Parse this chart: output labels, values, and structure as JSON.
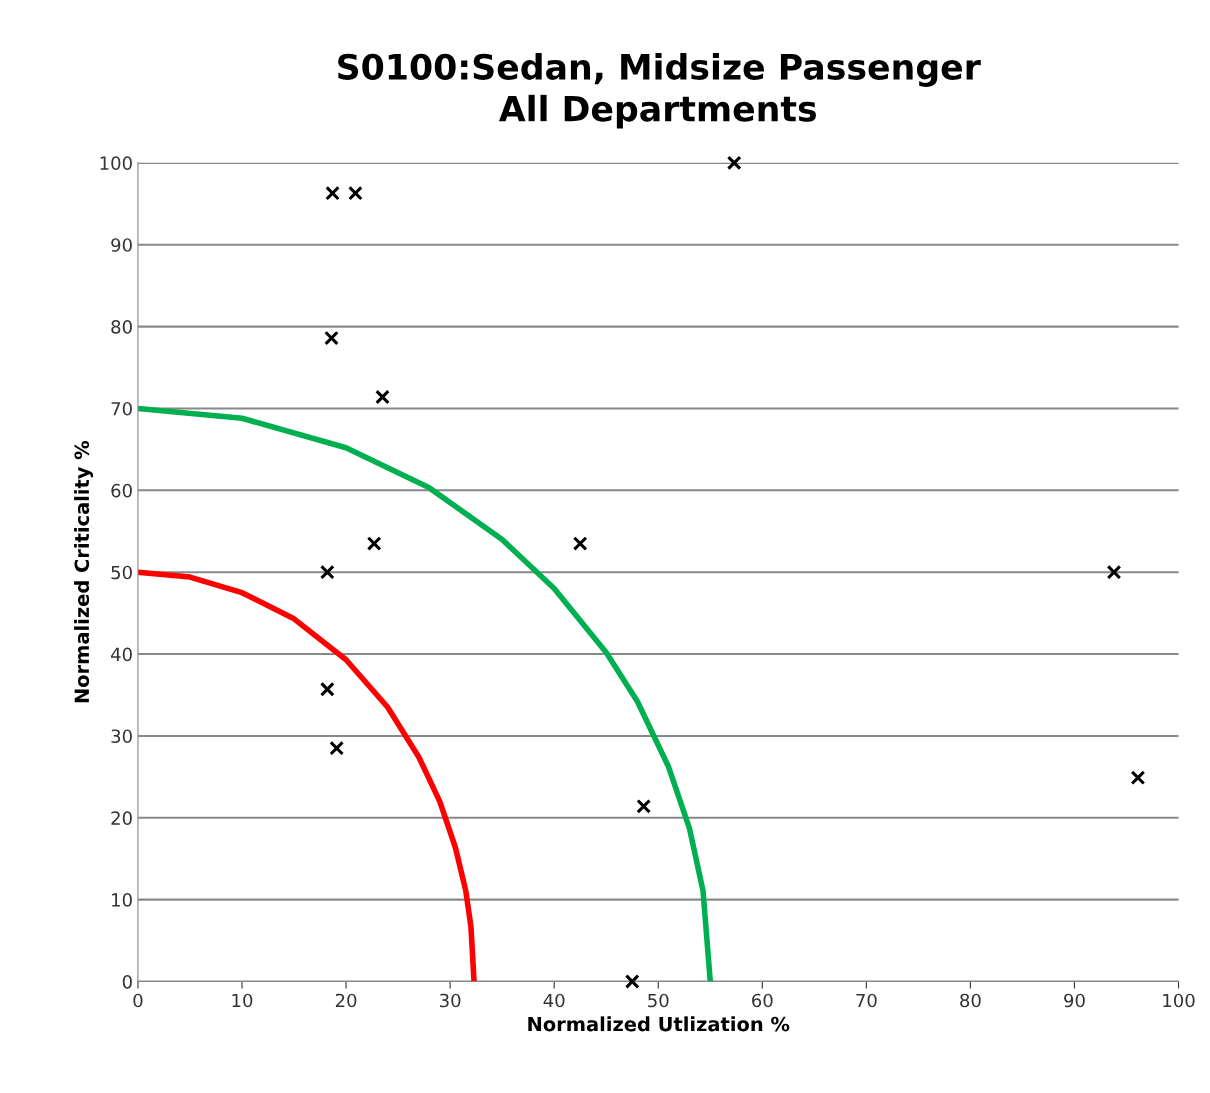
{
  "chart_data": {
    "type": "scatter",
    "title": "S0100:Sedan, Midsize Passenger\nAll Departments",
    "xlabel": "Normalized Utlization %",
    "ylabel": "Normalized Criticality %",
    "xlim": [
      0,
      100
    ],
    "xticks": [
      0,
      10,
      20,
      30,
      40,
      50,
      60,
      70,
      80,
      90,
      100
    ],
    "ylim": [
      0,
      100
    ],
    "yticks": [
      0,
      10,
      20,
      30,
      40,
      50,
      60,
      70,
      80,
      90,
      100
    ],
    "grid": "y",
    "legend": false,
    "series": [
      {
        "color": "#000000",
        "marker": "cross",
        "x": [
          18.7,
          20.9,
          57.3,
          18.6,
          23.5,
          22.7,
          42.5,
          18.2,
          93.8,
          18.2,
          19.1,
          48.6,
          96.1,
          47.5
        ],
        "values": [
          96.3,
          96.3,
          100,
          78.6,
          71.4,
          53.5,
          53.5,
          50,
          50,
          35.7,
          28.5,
          21.4,
          24.9,
          0
        ]
      },
      {
        "type": "line",
        "color": "#ff0000",
        "marker": "none",
        "line_style": "solid",
        "x": [
          0,
          5,
          10,
          15,
          20,
          24,
          27,
          29,
          30.5,
          31.5,
          32,
          32.3
        ],
        "values": [
          50,
          49.4,
          47.5,
          44.3,
          39.3,
          33.5,
          27.4,
          22,
          16.4,
          11.1,
          6.7,
          0
        ]
      },
      {
        "type": "line",
        "color": "#00b050",
        "marker": "none",
        "line_style": "solid",
        "x": [
          0,
          10,
          20,
          28,
          35,
          40,
          45,
          48,
          51,
          53,
          54.3,
          55
        ],
        "values": [
          70,
          68.8,
          65.2,
          60.3,
          54,
          48,
          40.2,
          34.2,
          26.2,
          18.7,
          11.1,
          0
        ]
      }
    ]
  }
}
